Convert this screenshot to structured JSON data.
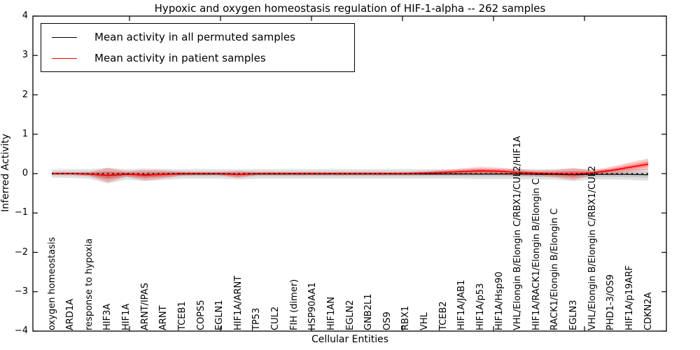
{
  "chart_data": {
    "type": "line",
    "title": "Hypoxic and oxygen homeostasis regulation of HIF-1-alpha -- 262 samples",
    "xlabel": "Cellular Entities",
    "ylabel": "Inferred Activity",
    "ylim": [
      -4,
      4
    ],
    "yticks": [
      4,
      3,
      2,
      1,
      0,
      -1,
      -2,
      -3,
      -4
    ],
    "ytick_labels": [
      "4",
      "3",
      "2",
      "1",
      "0",
      "−1",
      "−2",
      "−3",
      "−4"
    ],
    "grid": false,
    "legend_position": "upper left",
    "zero_reference_line": 0,
    "categories": [
      "oxygen homeostasis",
      "ARD1A",
      "response to hypoxia",
      "HIF3A",
      "HIF1A",
      "ARNT/IPAS",
      "ARNT",
      "TCEB1",
      "COPS5",
      "EGLN1",
      "HIF1A/ARNT",
      "TP53",
      "CUL2",
      "FIH (dimer)",
      "HSP90AA1",
      "HIF1AN",
      "EGLN2",
      "GNB2L1",
      "OS9",
      "RBX1",
      "VHL",
      "TCEB2",
      "HIF1A/JAB1",
      "HIF1A/p53",
      "HIF1A/Hsp90",
      "VHL/Elongin B/Elongin C/RBX1/CUL2/HIF1A",
      "HIF1A/RACK1/Elongin B/Elongin C",
      "RACK1/Elongin B/Elongin C",
      "EGLN3",
      "VHL/Elongin B/Elongin C/RBX1/CUL2",
      "PHD1-3/OS9",
      "HIF1A/p19ARF",
      "CDKN2A"
    ],
    "series": [
      {
        "name": "Mean activity in all permuted samples",
        "color": "#000000",
        "values": [
          0.0,
          0.0,
          -0.01,
          -0.05,
          -0.02,
          -0.03,
          -0.02,
          -0.01,
          -0.01,
          -0.01,
          -0.02,
          -0.01,
          -0.01,
          -0.01,
          -0.01,
          -0.01,
          -0.01,
          -0.01,
          -0.01,
          -0.01,
          -0.01,
          -0.01,
          -0.01,
          -0.01,
          -0.01,
          -0.01,
          -0.02,
          -0.02,
          -0.03,
          -0.02,
          -0.02,
          -0.02,
          -0.03
        ],
        "std": [
          0.1,
          0.11,
          0.12,
          0.2,
          0.13,
          0.16,
          0.14,
          0.12,
          0.12,
          0.12,
          0.13,
          0.12,
          0.12,
          0.12,
          0.12,
          0.12,
          0.12,
          0.12,
          0.12,
          0.12,
          0.12,
          0.12,
          0.12,
          0.13,
          0.13,
          0.13,
          0.13,
          0.13,
          0.16,
          0.13,
          0.13,
          0.14,
          0.15
        ]
      },
      {
        "name": "Mean activity in patient samples",
        "color": "#ff0000",
        "values": [
          0.0,
          0.0,
          -0.01,
          -0.04,
          -0.01,
          -0.04,
          -0.02,
          0.0,
          0.0,
          0.0,
          -0.02,
          0.0,
          0.0,
          0.0,
          0.0,
          0.0,
          0.0,
          0.0,
          0.0,
          0.0,
          0.01,
          0.03,
          0.05,
          0.07,
          0.06,
          0.03,
          0.01,
          0.0,
          -0.01,
          0.02,
          0.08,
          0.16,
          0.24
        ],
        "std": [
          0.03,
          0.03,
          0.05,
          0.18,
          0.07,
          0.13,
          0.1,
          0.05,
          0.04,
          0.04,
          0.09,
          0.04,
          0.04,
          0.04,
          0.04,
          0.04,
          0.04,
          0.04,
          0.04,
          0.04,
          0.05,
          0.06,
          0.08,
          0.1,
          0.09,
          0.08,
          0.07,
          0.09,
          0.15,
          0.06,
          0.09,
          0.12,
          0.14
        ]
      }
    ]
  }
}
